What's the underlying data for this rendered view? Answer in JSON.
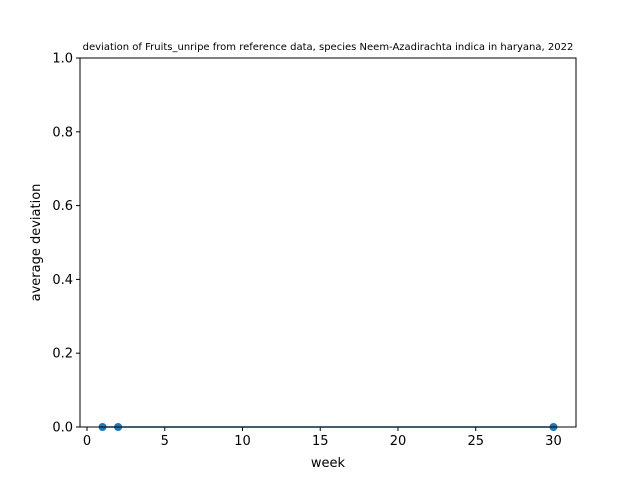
{
  "chart_data": {
    "type": "line",
    "title": "deviation of Fruits_unripe from reference data, species Neem-Azadirachta indica in haryana, 2022",
    "xlabel": "week",
    "ylabel": "average deviation",
    "xlim": [
      -0.45,
      31.45
    ],
    "ylim": [
      0,
      1
    ],
    "xticks": [
      0,
      5,
      10,
      15,
      20,
      25,
      30
    ],
    "yticks": [
      0.0,
      0.2,
      0.4,
      0.6,
      0.8,
      1.0
    ],
    "xtick_labels": [
      "0",
      "5",
      "10",
      "15",
      "20",
      "25",
      "30"
    ],
    "ytick_labels": [
      "0.0",
      "0.2",
      "0.4",
      "0.6",
      "0.8",
      "1.0"
    ],
    "grid": false,
    "series": [
      {
        "color": "#1f77b4",
        "x": [
          1,
          2,
          30
        ],
        "y": [
          0,
          0,
          0
        ],
        "markers": true
      }
    ]
  }
}
